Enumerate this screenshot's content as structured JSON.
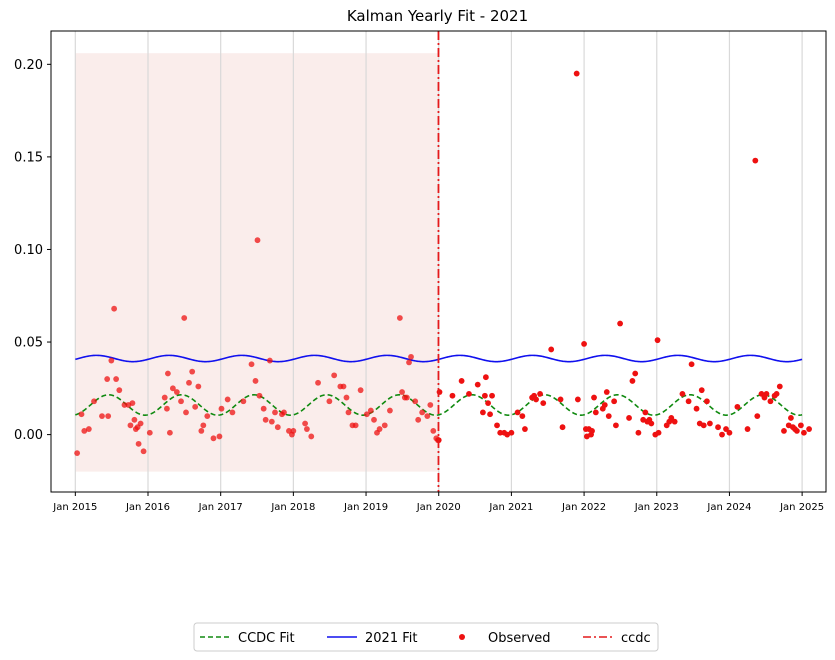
{
  "chart_data": {
    "type": "scatter",
    "title": "Kalman Yearly Fit - 2021",
    "xlabel": "",
    "ylabel": "",
    "xlim": [
      "2014-09-01",
      "2025-05-01"
    ],
    "ylim": [
      -0.031,
      0.218
    ],
    "x_ticks": [
      "Jan 2015",
      "Jan 2016",
      "Jan 2017",
      "Jan 2018",
      "Jan 2019",
      "Jan 2020",
      "Jan 2021",
      "Jan 2022",
      "Jan 2023",
      "Jan 2024",
      "Jan 2025"
    ],
    "y_ticks": [
      "0.00",
      "0.05",
      "0.10",
      "0.15",
      "0.20"
    ],
    "y_tick_values": [
      0.0,
      0.05,
      0.1,
      0.15,
      0.2
    ],
    "grid": "vertical at yearly ticks",
    "training_window": {
      "start": "2015-01-01",
      "end": "2019-12-31",
      "y_min": -0.02,
      "y_max": 0.206,
      "color": "#f5dcd7"
    },
    "ccdc_break": {
      "date": "2019-12-31",
      "color": "#e41a1c"
    },
    "series": [
      {
        "name": "CCDC Fit",
        "style": "dashed",
        "color": "#108a10",
        "mean": 0.016,
        "amplitude": 0.0055,
        "peak_month": 6.5,
        "start": "2015-01-01",
        "end": "2024-12-31"
      },
      {
        "name": "2021 Fit",
        "style": "solid",
        "color": "#1010ee",
        "mean": 0.0411,
        "amplitude": 0.0017,
        "peak_month": 4.5,
        "start": "2015-01-01",
        "end": "2024-12-31"
      },
      {
        "name": "Observed",
        "style": "markers",
        "color": "#ee1111",
        "points": [
          [
            "2015-01-10",
            -0.01
          ],
          [
            "2015-02-01",
            0.011
          ],
          [
            "2015-02-15",
            0.002
          ],
          [
            "2015-03-10",
            0.003
          ],
          [
            "2015-04-05",
            0.018
          ],
          [
            "2015-05-15",
            0.01
          ],
          [
            "2015-06-10",
            0.03
          ],
          [
            "2015-06-15",
            0.01
          ],
          [
            "2015-07-01",
            0.04
          ],
          [
            "2015-07-15",
            0.068
          ],
          [
            "2015-07-25",
            0.03
          ],
          [
            "2015-08-10",
            0.024
          ],
          [
            "2015-09-05",
            0.016
          ],
          [
            "2015-09-25",
            0.016
          ],
          [
            "2015-10-05",
            0.005
          ],
          [
            "2015-10-15",
            0.017
          ],
          [
            "2015-10-25",
            0.008
          ],
          [
            "2015-11-01",
            0.003
          ],
          [
            "2015-11-10",
            0.004
          ],
          [
            "2015-11-15",
            -0.005
          ],
          [
            "2015-11-25",
            0.006
          ],
          [
            "2015-12-10",
            -0.009
          ],
          [
            "2016-01-10",
            0.001
          ],
          [
            "2016-03-25",
            0.02
          ],
          [
            "2016-04-05",
            0.014
          ],
          [
            "2016-04-10",
            0.033
          ],
          [
            "2016-04-20",
            0.001
          ],
          [
            "2016-05-05",
            0.025
          ],
          [
            "2016-05-25",
            0.023
          ],
          [
            "2016-06-15",
            0.018
          ],
          [
            "2016-07-01",
            0.063
          ],
          [
            "2016-07-10",
            0.012
          ],
          [
            "2016-07-25",
            0.028
          ],
          [
            "2016-08-10",
            0.034
          ],
          [
            "2016-08-25",
            0.015
          ],
          [
            "2016-09-10",
            0.026
          ],
          [
            "2016-09-25",
            0.002
          ],
          [
            "2016-10-05",
            0.005
          ],
          [
            "2016-10-25",
            0.01
          ],
          [
            "2016-11-25",
            -0.002
          ],
          [
            "2016-12-25",
            -0.001
          ],
          [
            "2017-01-05",
            0.014
          ],
          [
            "2017-02-05",
            0.019
          ],
          [
            "2017-03-01",
            0.012
          ],
          [
            "2017-04-25",
            0.018
          ],
          [
            "2017-06-05",
            0.038
          ],
          [
            "2017-06-25",
            0.029
          ],
          [
            "2017-07-05",
            0.105
          ],
          [
            "2017-07-15",
            0.021
          ],
          [
            "2017-08-05",
            0.014
          ],
          [
            "2017-08-15",
            0.008
          ],
          [
            "2017-09-05",
            0.04
          ],
          [
            "2017-09-15",
            0.007
          ],
          [
            "2017-10-01",
            0.012
          ],
          [
            "2017-10-15",
            0.004
          ],
          [
            "2017-11-05",
            0.011
          ],
          [
            "2017-11-15",
            0.012
          ],
          [
            "2017-12-10",
            0.002
          ],
          [
            "2017-12-25",
            0.0
          ],
          [
            "2018-01-01",
            0.002
          ],
          [
            "2018-03-01",
            0.006
          ],
          [
            "2018-03-10",
            0.003
          ],
          [
            "2018-04-01",
            -0.001
          ],
          [
            "2018-05-05",
            0.028
          ],
          [
            "2018-07-01",
            0.018
          ],
          [
            "2018-07-25",
            0.032
          ],
          [
            "2018-08-25",
            0.026
          ],
          [
            "2018-09-10",
            0.026
          ],
          [
            "2018-09-25",
            0.02
          ],
          [
            "2018-10-05",
            0.012
          ],
          [
            "2018-10-25",
            0.005
          ],
          [
            "2018-11-10",
            0.005
          ],
          [
            "2018-12-05",
            0.024
          ],
          [
            "2019-01-05",
            0.011
          ],
          [
            "2019-01-25",
            0.013
          ],
          [
            "2019-02-10",
            0.008
          ],
          [
            "2019-02-25",
            0.001
          ],
          [
            "2019-03-10",
            0.003
          ],
          [
            "2019-04-05",
            0.005
          ],
          [
            "2019-05-01",
            0.013
          ],
          [
            "2019-06-20",
            0.063
          ],
          [
            "2019-07-01",
            0.023
          ],
          [
            "2019-07-15",
            0.02
          ],
          [
            "2019-07-25",
            0.02
          ],
          [
            "2019-08-05",
            0.039
          ],
          [
            "2019-08-15",
            0.042
          ],
          [
            "2019-09-05",
            0.018
          ],
          [
            "2019-09-20",
            0.008
          ],
          [
            "2019-10-10",
            0.012
          ],
          [
            "2019-11-05",
            0.01
          ],
          [
            "2019-11-20",
            0.016
          ],
          [
            "2019-12-05",
            0.002
          ],
          [
            "2019-12-20",
            -0.002
          ],
          [
            "2019-12-28",
            -0.003
          ],
          [
            "2020-01-01",
            -0.003
          ],
          [
            "2020-01-05",
            0.023
          ],
          [
            "2020-03-10",
            0.021
          ],
          [
            "2020-04-25",
            0.029
          ],
          [
            "2020-06-01",
            0.022
          ],
          [
            "2020-07-15",
            0.027
          ],
          [
            "2020-08-10",
            0.012
          ],
          [
            "2020-08-20",
            0.021
          ],
          [
            "2020-08-25",
            0.031
          ],
          [
            "2020-09-05",
            0.017
          ],
          [
            "2020-09-15",
            0.011
          ],
          [
            "2020-09-25",
            0.021
          ],
          [
            "2020-10-20",
            0.005
          ],
          [
            "2020-11-05",
            0.001
          ],
          [
            "2020-11-25",
            0.001
          ],
          [
            "2020-12-10",
            0.0
          ],
          [
            "2021-01-01",
            0.001
          ],
          [
            "2021-02-01",
            0.012
          ],
          [
            "2021-02-25",
            0.01
          ],
          [
            "2021-03-10",
            0.003
          ],
          [
            "2021-04-15",
            0.02
          ],
          [
            "2021-04-25",
            0.021
          ],
          [
            "2021-05-05",
            0.019
          ],
          [
            "2021-05-25",
            0.022
          ],
          [
            "2021-06-10",
            0.017
          ],
          [
            "2021-07-20",
            0.046
          ],
          [
            "2021-09-05",
            0.019
          ],
          [
            "2021-09-15",
            0.004
          ],
          [
            "2021-11-25",
            0.195
          ],
          [
            "2021-12-01",
            0.019
          ],
          [
            "2022-01-01",
            0.049
          ],
          [
            "2022-01-10",
            0.003
          ],
          [
            "2022-01-15",
            -0.001
          ],
          [
            "2022-01-25",
            0.003
          ],
          [
            "2022-02-05",
            0.0
          ],
          [
            "2022-02-10",
            0.002
          ],
          [
            "2022-02-20",
            0.02
          ],
          [
            "2022-03-01",
            0.012
          ],
          [
            "2022-04-05",
            0.014
          ],
          [
            "2022-04-15",
            0.016
          ],
          [
            "2022-04-25",
            0.023
          ],
          [
            "2022-05-05",
            0.01
          ],
          [
            "2022-06-01",
            0.018
          ],
          [
            "2022-06-10",
            0.005
          ],
          [
            "2022-07-01",
            0.06
          ],
          [
            "2022-08-15",
            0.009
          ],
          [
            "2022-09-01",
            0.029
          ],
          [
            "2022-09-15",
            0.033
          ],
          [
            "2022-10-01",
            0.001
          ],
          [
            "2022-10-25",
            0.008
          ],
          [
            "2022-11-05",
            0.012
          ],
          [
            "2022-11-15",
            0.007
          ],
          [
            "2022-11-25",
            0.008
          ],
          [
            "2022-12-05",
            0.006
          ],
          [
            "2022-12-25",
            0.0
          ],
          [
            "2023-01-05",
            0.051
          ],
          [
            "2023-01-10",
            0.001
          ],
          [
            "2023-02-20",
            0.005
          ],
          [
            "2023-03-05",
            0.007
          ],
          [
            "2023-03-15",
            0.009
          ],
          [
            "2023-04-01",
            0.007
          ],
          [
            "2023-05-10",
            0.022
          ],
          [
            "2023-06-10",
            0.018
          ],
          [
            "2023-06-25",
            0.038
          ],
          [
            "2023-07-20",
            0.014
          ],
          [
            "2023-08-05",
            0.006
          ],
          [
            "2023-08-15",
            0.024
          ],
          [
            "2023-08-25",
            0.005
          ],
          [
            "2023-09-10",
            0.018
          ],
          [
            "2023-09-25",
            0.006
          ],
          [
            "2023-11-05",
            0.004
          ],
          [
            "2023-11-25",
            0.0
          ],
          [
            "2023-12-15",
            0.003
          ],
          [
            "2024-01-01",
            0.001
          ],
          [
            "2024-02-10",
            0.015
          ],
          [
            "2024-04-01",
            0.003
          ],
          [
            "2024-05-10",
            0.148
          ],
          [
            "2024-05-20",
            0.01
          ],
          [
            "2024-06-10",
            0.022
          ],
          [
            "2024-06-25",
            0.02
          ],
          [
            "2024-07-05",
            0.022
          ],
          [
            "2024-07-25",
            0.018
          ],
          [
            "2024-08-15",
            0.021
          ],
          [
            "2024-08-25",
            0.022
          ],
          [
            "2024-09-10",
            0.026
          ],
          [
            "2024-10-01",
            0.002
          ],
          [
            "2024-10-25",
            0.005
          ],
          [
            "2024-11-05",
            0.009
          ],
          [
            "2024-11-15",
            0.004
          ],
          [
            "2024-11-25",
            0.003
          ],
          [
            "2024-12-05",
            0.002
          ],
          [
            "2024-12-25",
            0.005
          ],
          [
            "2025-01-10",
            0.001
          ],
          [
            "2025-02-05",
            0.003
          ]
        ]
      }
    ],
    "legend": {
      "placement": "bottom-center",
      "entries": [
        "CCDC Fit",
        "2021 Fit",
        "Observed",
        "ccdc"
      ]
    }
  }
}
